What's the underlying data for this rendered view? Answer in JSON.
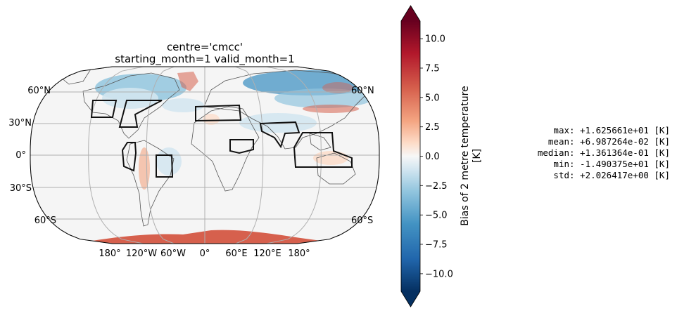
{
  "title": {
    "line1": "centre='cmcc'",
    "line2": "starting_month=1 valid_month=1"
  },
  "map": {
    "projection": "Robinson",
    "lat_labels_left": [
      "60°N",
      "30°N",
      "0°",
      "30°S",
      "60°S"
    ],
    "lat_labels_right": [
      "60°N",
      "60°S"
    ],
    "lon_labels": [
      "180°",
      "120°W",
      "60°W",
      "0°",
      "60°E",
      "120°E",
      "180°"
    ],
    "colors": {
      "gridline": "#b0b0b0",
      "coast": "#555555",
      "region_box": "#111111"
    }
  },
  "colorbar": {
    "label_line1": "Bias of 2 metre temperature",
    "label_line2": "[K]",
    "ticks": [
      "10.0",
      "7.5",
      "5.0",
      "2.5",
      "0.0",
      "−2.5",
      "−5.0",
      "−7.5",
      "−10.0"
    ],
    "tick_values": [
      10,
      7.5,
      5,
      2.5,
      0,
      -2.5,
      -5,
      -7.5,
      -10
    ],
    "vmin": -11.5,
    "vmax": 11.5,
    "cmap": "RdBu_r",
    "extend": "both"
  },
  "stats": {
    "max": "max: +1.625661e+01 [K]",
    "mean": "mean: +6.987264e-02 [K]",
    "median": "median: +1.361364e-01 [K]",
    "min": "min: -1.490375e+01 [K]",
    "std": "std: +2.026417e+00 [K]"
  }
}
